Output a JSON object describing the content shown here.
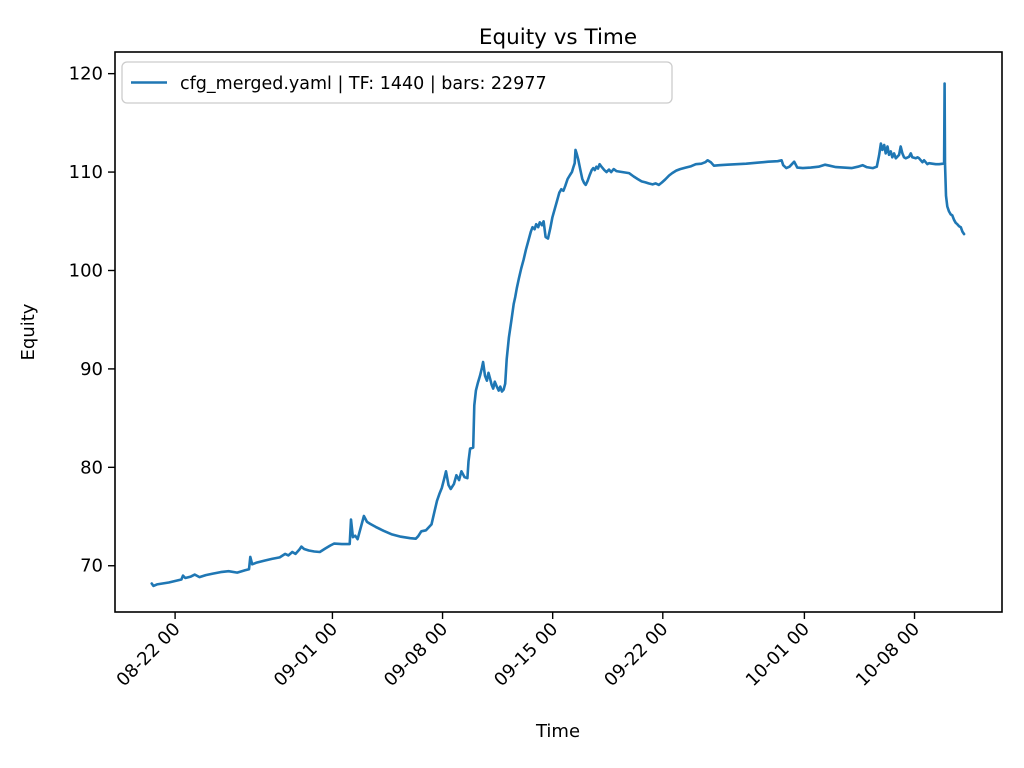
{
  "chart_data": {
    "type": "line",
    "title": "Equity vs Time",
    "xlabel": "Time",
    "ylabel": "Equity",
    "x_unit": "days since 08-22 00:00",
    "xlim": [
      -3.82,
      52.56
    ],
    "ylim": [
      65.3,
      122.2
    ],
    "grid": false,
    "y_ticks": [
      70,
      80,
      90,
      100,
      110,
      120
    ],
    "x_ticks": [
      {
        "day": 0,
        "label": "08-22 00"
      },
      {
        "day": 10,
        "label": "09-01 00"
      },
      {
        "day": 17,
        "label": "09-08 00"
      },
      {
        "day": 24,
        "label": "09-15 00"
      },
      {
        "day": 31,
        "label": "09-22 00"
      },
      {
        "day": 40,
        "label": "10-01 00"
      },
      {
        "day": 47,
        "label": "10-08 00"
      }
    ],
    "legend": {
      "position": "upper left"
    },
    "colors": {
      "line": "#1f77b4",
      "axis": "#000000",
      "legend_border": "#cccccc",
      "background": "#ffffff"
    },
    "series": [
      {
        "label": "cfg_merged.yaml | TF: 1440 | bars: 22977",
        "color": "#1f77b4",
        "points": [
          [
            -1.49,
            68.2
          ],
          [
            -1.38,
            67.95
          ],
          [
            -1.15,
            68.1
          ],
          [
            -0.8,
            68.2
          ],
          [
            -0.4,
            68.3
          ],
          [
            0,
            68.45
          ],
          [
            0.4,
            68.6
          ],
          [
            0.5,
            69
          ],
          [
            0.65,
            68.75
          ],
          [
            1,
            68.9
          ],
          [
            1.25,
            69.1
          ],
          [
            1.55,
            68.85
          ],
          [
            1.95,
            69.05
          ],
          [
            2.4,
            69.2
          ],
          [
            2.9,
            69.35
          ],
          [
            3.4,
            69.45
          ],
          [
            3.95,
            69.3
          ],
          [
            4.45,
            69.55
          ],
          [
            4.7,
            69.65
          ],
          [
            4.78,
            70.9
          ],
          [
            4.9,
            70.15
          ],
          [
            5.15,
            70.3
          ],
          [
            5.65,
            70.5
          ],
          [
            6.15,
            70.7
          ],
          [
            6.65,
            70.85
          ],
          [
            7,
            71.2
          ],
          [
            7.2,
            71.05
          ],
          [
            7.45,
            71.4
          ],
          [
            7.65,
            71.2
          ],
          [
            7.9,
            71.65
          ],
          [
            8.03,
            71.95
          ],
          [
            8.2,
            71.7
          ],
          [
            8.5,
            71.55
          ],
          [
            8.85,
            71.45
          ],
          [
            9.2,
            71.4
          ],
          [
            9.55,
            71.75
          ],
          [
            9.85,
            72.05
          ],
          [
            10.1,
            72.25
          ],
          [
            10.6,
            72.2
          ],
          [
            11.1,
            72.2
          ],
          [
            11.18,
            74.7
          ],
          [
            11.3,
            72.9
          ],
          [
            11.45,
            73.05
          ],
          [
            11.6,
            72.7
          ],
          [
            12,
            75.05
          ],
          [
            12.2,
            74.45
          ],
          [
            12.4,
            74.25
          ],
          [
            12.75,
            73.95
          ],
          [
            13.25,
            73.55
          ],
          [
            13.75,
            73.2
          ],
          [
            14.35,
            72.95
          ],
          [
            14.95,
            72.8
          ],
          [
            15.3,
            72.75
          ],
          [
            15.45,
            73
          ],
          [
            15.65,
            73.5
          ],
          [
            15.95,
            73.6
          ],
          [
            16.3,
            74.2
          ],
          [
            16.5,
            75.6
          ],
          [
            16.65,
            76.6
          ],
          [
            16.8,
            77.3
          ],
          [
            16.95,
            77.9
          ],
          [
            17.1,
            78.8
          ],
          [
            17.22,
            79.6
          ],
          [
            17.38,
            78.2
          ],
          [
            17.52,
            77.8
          ],
          [
            17.72,
            78.3
          ],
          [
            17.88,
            79.2
          ],
          [
            18.05,
            78.7
          ],
          [
            18.2,
            79.6
          ],
          [
            18.4,
            79
          ],
          [
            18.58,
            78.9
          ],
          [
            18.65,
            80.6
          ],
          [
            18.75,
            81.9
          ],
          [
            18.95,
            82
          ],
          [
            19.02,
            86.3
          ],
          [
            19.12,
            87.8
          ],
          [
            19.25,
            88.6
          ],
          [
            19.38,
            89.3
          ],
          [
            19.5,
            90.1
          ],
          [
            19.58,
            90.7
          ],
          [
            19.7,
            89.3
          ],
          [
            19.82,
            88.8
          ],
          [
            19.92,
            89.6
          ],
          [
            20.02,
            89
          ],
          [
            20.12,
            88.4
          ],
          [
            20.22,
            88
          ],
          [
            20.32,
            88.7
          ],
          [
            20.45,
            88.2
          ],
          [
            20.57,
            87.8
          ],
          [
            20.67,
            88.2
          ],
          [
            20.77,
            87.7
          ],
          [
            20.88,
            87.9
          ],
          [
            20.98,
            88.5
          ],
          [
            21.08,
            91
          ],
          [
            21.22,
            93.2
          ],
          [
            21.38,
            95
          ],
          [
            21.52,
            96.6
          ],
          [
            21.62,
            97.3
          ],
          [
            21.72,
            98.2
          ],
          [
            21.85,
            99.2
          ],
          [
            22,
            100.2
          ],
          [
            22.15,
            101.1
          ],
          [
            22.3,
            102.1
          ],
          [
            22.45,
            103
          ],
          [
            22.6,
            103.9
          ],
          [
            22.72,
            104.4
          ],
          [
            22.85,
            104.2
          ],
          [
            22.95,
            104.7
          ],
          [
            23.08,
            104.4
          ],
          [
            23.18,
            104.9
          ],
          [
            23.32,
            104.6
          ],
          [
            23.42,
            105
          ],
          [
            23.55,
            103.4
          ],
          [
            23.7,
            103.25
          ],
          [
            23.85,
            104.3
          ],
          [
            23.98,
            105.4
          ],
          [
            24.12,
            106.2
          ],
          [
            24.28,
            107.1
          ],
          [
            24.42,
            107.9
          ],
          [
            24.55,
            108.25
          ],
          [
            24.68,
            108.1
          ],
          [
            24.8,
            108.6
          ],
          [
            24.95,
            109.3
          ],
          [
            25.1,
            109.7
          ],
          [
            25.22,
            110
          ],
          [
            25.32,
            110.5
          ],
          [
            25.4,
            110.9
          ],
          [
            25.45,
            112.25
          ],
          [
            25.52,
            111.9
          ],
          [
            25.62,
            111.3
          ],
          [
            25.75,
            110.3
          ],
          [
            25.88,
            109.3
          ],
          [
            26,
            108.9
          ],
          [
            26.1,
            108.7
          ],
          [
            26.22,
            109.1
          ],
          [
            26.35,
            109.7
          ],
          [
            26.48,
            110.2
          ],
          [
            26.58,
            110.4
          ],
          [
            26.68,
            110.2
          ],
          [
            26.78,
            110.55
          ],
          [
            26.88,
            110.35
          ],
          [
            26.98,
            110.8
          ],
          [
            27.12,
            110.5
          ],
          [
            27.28,
            110.2
          ],
          [
            27.42,
            110
          ],
          [
            27.58,
            110.25
          ],
          [
            27.72,
            110
          ],
          [
            27.88,
            110.3
          ],
          [
            28.05,
            110.1
          ],
          [
            28.45,
            110
          ],
          [
            28.85,
            109.9
          ],
          [
            29.15,
            109.55
          ],
          [
            29.4,
            109.3
          ],
          [
            29.65,
            109.05
          ],
          [
            29.9,
            108.95
          ],
          [
            30.1,
            108.85
          ],
          [
            30.35,
            108.75
          ],
          [
            30.55,
            108.85
          ],
          [
            30.75,
            108.7
          ],
          [
            30.95,
            108.95
          ],
          [
            31.15,
            109.25
          ],
          [
            31.4,
            109.65
          ],
          [
            31.6,
            109.9
          ],
          [
            31.85,
            110.15
          ],
          [
            32.1,
            110.3
          ],
          [
            32.45,
            110.45
          ],
          [
            32.8,
            110.6
          ],
          [
            33.1,
            110.8
          ],
          [
            33.45,
            110.85
          ],
          [
            33.7,
            111
          ],
          [
            33.85,
            111.2
          ],
          [
            34.05,
            111
          ],
          [
            34.25,
            110.65
          ],
          [
            34.6,
            110.7
          ],
          [
            35.1,
            110.75
          ],
          [
            35.7,
            110.8
          ],
          [
            36.3,
            110.85
          ],
          [
            37,
            110.95
          ],
          [
            37.7,
            111.05
          ],
          [
            38.3,
            111.1
          ],
          [
            38.55,
            111.2
          ],
          [
            38.65,
            110.7
          ],
          [
            38.85,
            110.4
          ],
          [
            39.05,
            110.55
          ],
          [
            39.35,
            111.05
          ],
          [
            39.55,
            110.45
          ],
          [
            39.9,
            110.4
          ],
          [
            40.4,
            110.45
          ],
          [
            40.9,
            110.55
          ],
          [
            41.3,
            110.75
          ],
          [
            41.6,
            110.65
          ],
          [
            42,
            110.5
          ],
          [
            42.5,
            110.45
          ],
          [
            43,
            110.4
          ],
          [
            43.4,
            110.55
          ],
          [
            43.7,
            110.7
          ],
          [
            43.95,
            110.5
          ],
          [
            44.35,
            110.4
          ],
          [
            44.6,
            110.55
          ],
          [
            44.75,
            111.7
          ],
          [
            44.86,
            112.9
          ],
          [
            44.96,
            112.25
          ],
          [
            45.07,
            112.75
          ],
          [
            45.17,
            111.9
          ],
          [
            45.28,
            112.6
          ],
          [
            45.38,
            111.75
          ],
          [
            45.49,
            112.1
          ],
          [
            45.59,
            111.5
          ],
          [
            45.7,
            111.9
          ],
          [
            45.81,
            111.4
          ],
          [
            46.02,
            111.75
          ],
          [
            46.12,
            112.6
          ],
          [
            46.23,
            111.9
          ],
          [
            46.33,
            111.5
          ],
          [
            46.44,
            111.4
          ],
          [
            46.65,
            111.55
          ],
          [
            46.76,
            111.9
          ],
          [
            46.86,
            111.5
          ],
          [
            47.08,
            111.4
          ],
          [
            47.18,
            111.5
          ],
          [
            47.29,
            111.4
          ],
          [
            47.4,
            111.2
          ],
          [
            47.5,
            111
          ],
          [
            47.61,
            111.2
          ],
          [
            47.71,
            111
          ],
          [
            47.82,
            110.8
          ],
          [
            47.92,
            110.9
          ],
          [
            48.13,
            110.85
          ],
          [
            48.35,
            110.8
          ],
          [
            48.56,
            110.8
          ],
          [
            48.81,
            110.85
          ],
          [
            48.88,
            110.9
          ],
          [
            48.91,
            119
          ],
          [
            48.94,
            110.9
          ],
          [
            49,
            107.6
          ],
          [
            49.08,
            106.5
          ],
          [
            49.19,
            106
          ],
          [
            49.3,
            105.7
          ],
          [
            49.4,
            105.6
          ],
          [
            49.51,
            105.15
          ],
          [
            49.62,
            104.85
          ],
          [
            49.72,
            104.7
          ],
          [
            49.83,
            104.5
          ],
          [
            49.94,
            104.4
          ],
          [
            50.04,
            103.95
          ],
          [
            50.15,
            103.7
          ]
        ]
      }
    ]
  }
}
